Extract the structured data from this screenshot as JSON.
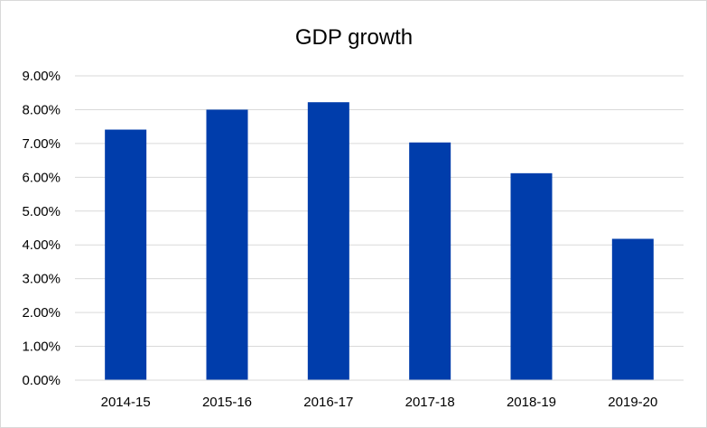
{
  "chart_data": {
    "type": "bar",
    "title": "GDP growth",
    "xlabel": "",
    "ylabel": "",
    "categories": [
      "2014-15",
      "2015-16",
      "2016-17",
      "2017-18",
      "2018-19",
      "2019-20"
    ],
    "series": [
      {
        "values": [
          7.41,
          8.0,
          8.22,
          7.03,
          6.12,
          4.18
        ],
        "color": "#003DAB"
      }
    ],
    "ylim": [
      0,
      9
    ],
    "yticks": [
      "0.00%",
      "1.00%",
      "2.00%",
      "3.00%",
      "4.00%",
      "5.00%",
      "6.00%",
      "7.00%",
      "8.00%",
      "9.00%"
    ],
    "grid": true,
    "legend": "none"
  }
}
